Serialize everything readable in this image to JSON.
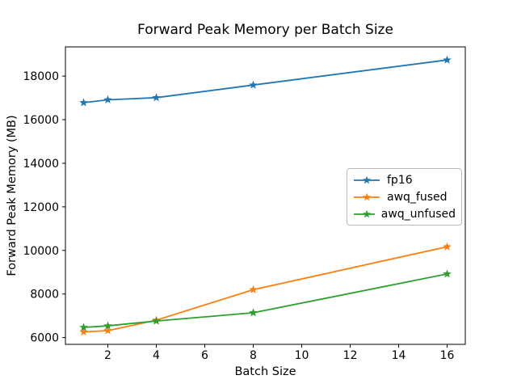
{
  "chart_data": {
    "type": "line",
    "title": "Forward Peak Memory per Batch Size",
    "xlabel": "Batch Size",
    "ylabel": "Forward Peak Memory (MB)",
    "x": [
      1,
      2,
      4,
      8,
      16
    ],
    "series": [
      {
        "name": "fp16",
        "color": "#1f77b4",
        "values": [
          16780,
          16910,
          17010,
          17590,
          18740
        ]
      },
      {
        "name": "awq_fused",
        "color": "#ff7f0e",
        "values": [
          6260,
          6320,
          6800,
          8200,
          10170
        ]
      },
      {
        "name": "awq_unfused",
        "color": "#2ca02c",
        "values": [
          6470,
          6540,
          6760,
          7140,
          8920
        ]
      }
    ],
    "marker": "star",
    "xticks": [
      2,
      4,
      6,
      8,
      10,
      12,
      14,
      16
    ],
    "yticks": [
      6000,
      8000,
      10000,
      12000,
      14000,
      16000,
      18000
    ],
    "xlim": [
      0.25,
      16.75
    ],
    "ylim": [
      5690,
      19340
    ],
    "grid": false,
    "legend_position": "center-right",
    "background_color": "#ffffff",
    "spine_color": "#000000"
  }
}
